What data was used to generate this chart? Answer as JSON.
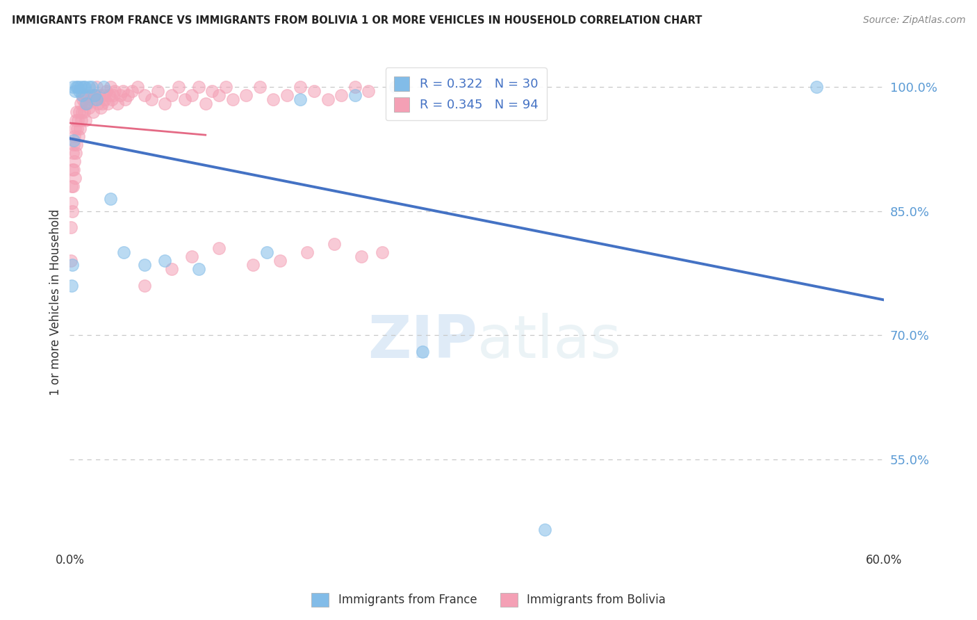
{
  "title": "IMMIGRANTS FROM FRANCE VS IMMIGRANTS FROM BOLIVIA 1 OR MORE VEHICLES IN HOUSEHOLD CORRELATION CHART",
  "source": "Source: ZipAtlas.com",
  "ylabel": "1 or more Vehicles in Household",
  "xlim": [
    0.0,
    60.0
  ],
  "ylim": [
    44.0,
    104.0
  ],
  "yticks": [
    55.0,
    70.0,
    85.0,
    100.0
  ],
  "ytick_labels": [
    "55.0%",
    "70.0%",
    "85.0%",
    "100.0%"
  ],
  "xtick_labels": [
    "0.0%",
    "60.0%"
  ],
  "france_R": 0.322,
  "france_N": 30,
  "bolivia_R": 0.345,
  "bolivia_N": 94,
  "france_color": "#82bce8",
  "bolivia_color": "#f4a0b5",
  "france_line_color": "#4472c4",
  "bolivia_line_color": "#e05070",
  "watermark_zip": "ZIP",
  "watermark_atlas": "atlas",
  "background_color": "#ffffff",
  "grid_color": "#c8c8c8",
  "france_scatter_x": [
    0.15,
    0.2,
    0.3,
    0.4,
    0.5,
    0.6,
    0.7,
    0.8,
    0.9,
    1.0,
    1.1,
    1.2,
    1.4,
    1.6,
    1.8,
    2.0,
    2.5,
    3.0,
    4.0,
    5.5,
    7.0,
    9.5,
    14.5,
    17.0,
    21.0,
    24.0,
    26.0,
    0.25,
    35.0,
    55.0
  ],
  "france_scatter_y": [
    76.0,
    78.5,
    93.5,
    99.5,
    100.0,
    100.0,
    99.5,
    100.0,
    99.0,
    100.0,
    100.0,
    98.0,
    100.0,
    100.0,
    99.0,
    98.5,
    100.0,
    86.5,
    80.0,
    78.5,
    79.0,
    78.0,
    80.0,
    98.5,
    99.0,
    100.0,
    68.0,
    100.0,
    46.5,
    100.0
  ],
  "bolivia_scatter_x": [
    0.08,
    0.1,
    0.12,
    0.15,
    0.17,
    0.2,
    0.22,
    0.25,
    0.28,
    0.3,
    0.33,
    0.35,
    0.38,
    0.4,
    0.43,
    0.45,
    0.48,
    0.5,
    0.55,
    0.6,
    0.65,
    0.7,
    0.75,
    0.8,
    0.85,
    0.9,
    0.95,
    1.0,
    1.05,
    1.1,
    1.15,
    1.2,
    1.3,
    1.4,
    1.5,
    1.6,
    1.7,
    1.8,
    1.9,
    2.0,
    2.1,
    2.2,
    2.3,
    2.4,
    2.5,
    2.6,
    2.7,
    2.8,
    2.9,
    3.0,
    3.1,
    3.2,
    3.3,
    3.5,
    3.7,
    3.9,
    4.1,
    4.3,
    4.6,
    5.0,
    5.5,
    6.0,
    6.5,
    7.0,
    7.5,
    8.0,
    8.5,
    9.0,
    9.5,
    10.0,
    10.5,
    11.0,
    11.5,
    12.0,
    13.0,
    14.0,
    15.0,
    16.0,
    17.0,
    18.0,
    19.0,
    20.0,
    21.0,
    22.0,
    5.5,
    7.5,
    9.0,
    11.0,
    13.5,
    15.5,
    17.5,
    19.5,
    21.5,
    23.0
  ],
  "bolivia_scatter_y": [
    83.0,
    79.0,
    88.0,
    86.0,
    90.0,
    85.0,
    92.0,
    88.0,
    93.0,
    90.0,
    94.0,
    91.0,
    95.0,
    89.0,
    96.0,
    92.0,
    97.0,
    93.0,
    95.0,
    96.0,
    94.0,
    97.0,
    95.0,
    98.0,
    96.0,
    97.0,
    98.5,
    99.0,
    97.0,
    98.0,
    96.0,
    99.0,
    98.0,
    97.5,
    98.5,
    99.0,
    97.0,
    98.5,
    99.0,
    100.0,
    98.0,
    99.0,
    97.5,
    98.0,
    99.0,
    98.5,
    99.5,
    98.0,
    99.0,
    100.0,
    98.5,
    99.0,
    99.5,
    98.0,
    99.0,
    99.5,
    98.5,
    99.0,
    99.5,
    100.0,
    99.0,
    98.5,
    99.5,
    98.0,
    99.0,
    100.0,
    98.5,
    99.0,
    100.0,
    98.0,
    99.5,
    99.0,
    100.0,
    98.5,
    99.0,
    100.0,
    98.5,
    99.0,
    100.0,
    99.5,
    98.5,
    99.0,
    100.0,
    99.5,
    76.0,
    78.0,
    79.5,
    80.5,
    78.5,
    79.0,
    80.0,
    81.0,
    79.5,
    80.0
  ]
}
